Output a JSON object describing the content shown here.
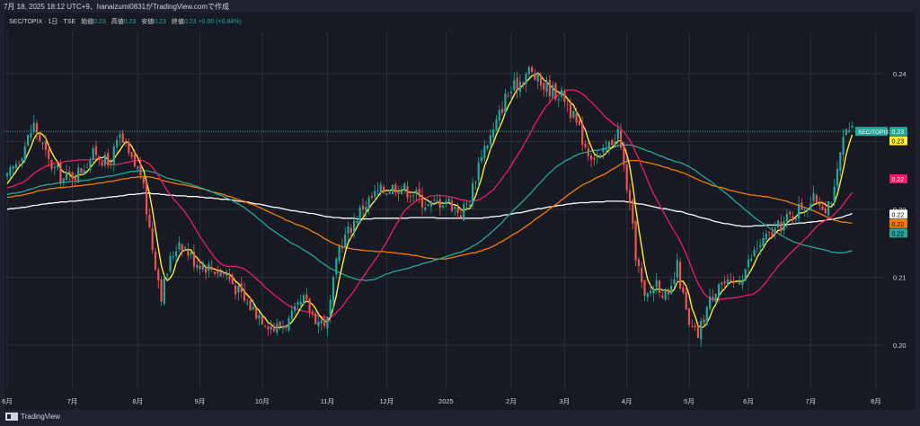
{
  "header": {
    "timestamp_line": "7月 18, 2025 18:12 UTC+9、hanaizumi0831がTradingView.comで作成"
  },
  "legend": {
    "symbol": "SEC/TOPIX · 1日 · TSE",
    "open_label": "始値",
    "open": "0.23",
    "high_label": "高値",
    "high": "0.23",
    "low_label": "安値",
    "low": "0.23",
    "close_label": "終値",
    "close": "0.23",
    "change": "+0.00 (+0.84%)"
  },
  "footer": {
    "brand": "TradingView"
  },
  "chart_data": {
    "type": "line",
    "subtype": "candlestick",
    "title": "SEC/TOPIX",
    "xlabel": "",
    "ylabel": "",
    "ylim": [
      0.195,
      0.245
    ],
    "y_ticks": [
      "0.24",
      "0.23",
      "0.22",
      "0.21",
      "0.20"
    ],
    "y_tick_values": [
      0.24,
      0.23,
      0.22,
      0.21,
      0.2
    ],
    "x_ticks": [
      "6月",
      "7月",
      "8月",
      "9月",
      "10月",
      "11月",
      "12月",
      "2025",
      "2月",
      "3月",
      "4月",
      "5月",
      "6月",
      "7月",
      "8月"
    ],
    "x_tick_days": [
      0,
      22,
      44,
      65,
      86,
      108,
      128,
      148,
      170,
      188,
      209,
      230,
      250,
      271,
      293
    ],
    "last_day": 285,
    "price_path": [
      [
        0,
        0.2245
      ],
      [
        5,
        0.2285
      ],
      [
        9,
        0.2325
      ],
      [
        14,
        0.227
      ],
      [
        19,
        0.2245
      ],
      [
        24,
        0.2255
      ],
      [
        30,
        0.2285
      ],
      [
        34,
        0.2265
      ],
      [
        38,
        0.2305
      ],
      [
        42,
        0.227
      ],
      [
        45,
        0.2255
      ],
      [
        49,
        0.2145
      ],
      [
        52,
        0.2075
      ],
      [
        55,
        0.2125
      ],
      [
        58,
        0.2155
      ],
      [
        63,
        0.2125
      ],
      [
        68,
        0.2115
      ],
      [
        74,
        0.2105
      ],
      [
        80,
        0.2065
      ],
      [
        85,
        0.2045
      ],
      [
        90,
        0.2025
      ],
      [
        95,
        0.2035
      ],
      [
        100,
        0.2065
      ],
      [
        105,
        0.2035
      ],
      [
        108,
        0.2035
      ],
      [
        112,
        0.2145
      ],
      [
        116,
        0.2175
      ],
      [
        120,
        0.2205
      ],
      [
        125,
        0.2225
      ],
      [
        131,
        0.2235
      ],
      [
        137,
        0.2225
      ],
      [
        142,
        0.2205
      ],
      [
        148,
        0.2215
      ],
      [
        153,
        0.2195
      ],
      [
        156,
        0.2215
      ],
      [
        160,
        0.2285
      ],
      [
        164,
        0.2315
      ],
      [
        168,
        0.2365
      ],
      [
        172,
        0.2385
      ],
      [
        176,
        0.2405
      ],
      [
        180,
        0.2385
      ],
      [
        184,
        0.2375
      ],
      [
        188,
        0.2365
      ],
      [
        192,
        0.2325
      ],
      [
        196,
        0.2285
      ],
      [
        200,
        0.2275
      ],
      [
        203,
        0.2295
      ],
      [
        206,
        0.2315
      ],
      [
        209,
        0.2235
      ],
      [
        212,
        0.2135
      ],
      [
        215,
        0.2065
      ],
      [
        219,
        0.2095
      ],
      [
        223,
        0.2065
      ],
      [
        226,
        0.2115
      ],
      [
        230,
        0.2025
      ],
      [
        233,
        0.2015
      ],
      [
        236,
        0.2055
      ],
      [
        240,
        0.2095
      ],
      [
        244,
        0.2085
      ],
      [
        248,
        0.2105
      ],
      [
        253,
        0.2145
      ],
      [
        258,
        0.2165
      ],
      [
        263,
        0.2185
      ],
      [
        268,
        0.2205
      ],
      [
        273,
        0.2215
      ],
      [
        276,
        0.2205
      ],
      [
        279,
        0.2225
      ],
      [
        282,
        0.2305
      ],
      [
        285,
        0.2315
      ]
    ],
    "series": [
      {
        "name": "SEC/TOPIX",
        "type": "candlestick",
        "values": [],
        "color_up": "#26a69a",
        "color_down": "#ef5350"
      },
      {
        "values": [],
        "color": "#ffeb3b",
        "period": 5
      },
      {
        "values": [],
        "color": "#e91e63",
        "period": 25
      },
      {
        "values": [],
        "color": "#26a69a",
        "period": 75
      },
      {
        "values": [],
        "color": "#f57c00",
        "period": 100
      },
      {
        "values": [],
        "color": "#ffffff",
        "period": 200
      }
    ],
    "price_labels": [
      {
        "text": "SEC/TOPIX",
        "value": 0.2315,
        "color": "#26a69a",
        "text_color": "#ffffff"
      },
      {
        "text": "0.23",
        "value": 0.2315,
        "color": "#26a69a",
        "text_color": "#ffffff"
      },
      {
        "text": "0.23",
        "value": 0.2305,
        "color": "#ffeb3b",
        "text_color": "#000000"
      },
      {
        "text": "0.22",
        "value": 0.2245,
        "color": "#e91e63",
        "text_color": "#ffffff"
      },
      {
        "text": "0.22",
        "value": 0.2193,
        "color": "#ffffff",
        "text_color": "#000000"
      },
      {
        "text": "0.22",
        "value": 0.2185,
        "color": "#f57c00",
        "text_color": "#000000"
      },
      {
        "text": "0.22",
        "value": 0.2165,
        "color": "#26a69a",
        "text_color": "#000000"
      }
    ],
    "grid": true,
    "legend_position": "top-left",
    "colors": {
      "background": "#171a22",
      "grid": "#2a2e39",
      "axis_text": "#d1d4dc",
      "last_price_line": "#26a69a"
    }
  }
}
